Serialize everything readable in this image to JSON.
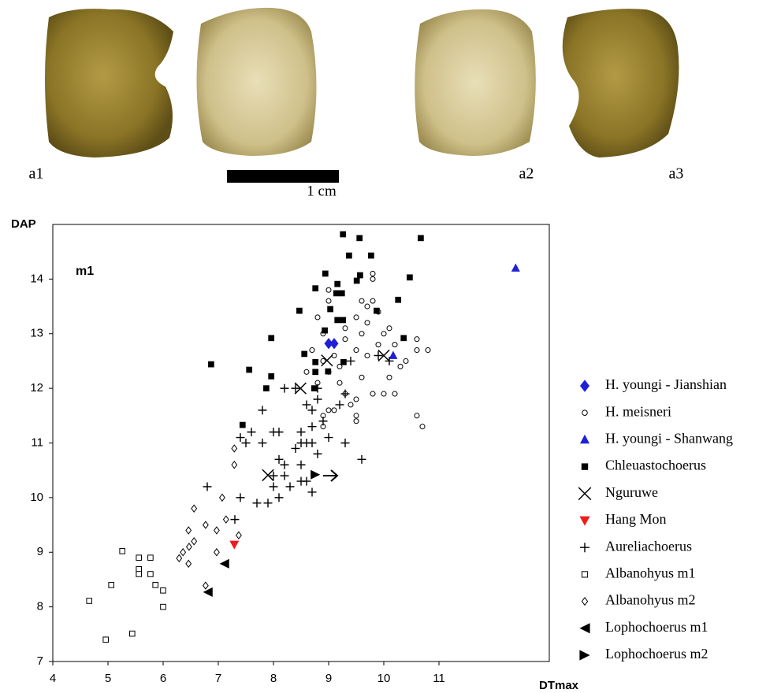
{
  "panel_labels": [
    "a1",
    "a2",
    "a3"
  ],
  "scale_bar": "1 cm",
  "chart_data": {
    "type": "scatter",
    "xlabel": "DTmax",
    "ylabel": "DAP",
    "annotation": "m1",
    "xlim": [
      4,
      13
    ],
    "xticks": [
      4,
      5,
      6,
      7,
      8,
      9,
      10,
      11
    ],
    "ylim": [
      7,
      15
    ],
    "yticks": [
      7,
      8,
      9,
      10,
      11,
      12,
      13,
      14
    ],
    "grid": false,
    "legend": "right",
    "series": [
      {
        "name": "H. youngi - Jianshian",
        "color": "#1f1fd6",
        "marker": "diamond",
        "x": [
          9.0,
          9.1
        ],
        "values": [
          12.82,
          12.82
        ]
      },
      {
        "name": "H. meisneri",
        "color": "#000000",
        "marker": "circle-open",
        "x": [
          9.8,
          9.8,
          9.0,
          9.0,
          9.6,
          9.8,
          9.7,
          9.9,
          8.8,
          9.5,
          9.7,
          10.1,
          9.3,
          9.6,
          10.0,
          8.9,
          10.6,
          9.3,
          9.9,
          10.2,
          10.8,
          9.5,
          10.6,
          8.7,
          9.1,
          9.7,
          10.4,
          8.9,
          10.3,
          9.2,
          8.6,
          9.0,
          9.6,
          8.8,
          9.2,
          10.1,
          9.3,
          9.8,
          9.5,
          10.0,
          10.2,
          9.4,
          9.1,
          9.5,
          8.9,
          9.0,
          10.6,
          10.7,
          8.9,
          9.5
        ],
        "values": [
          14.1,
          14.0,
          13.8,
          13.6,
          13.6,
          13.6,
          13.5,
          13.4,
          13.3,
          13.3,
          13.2,
          13.1,
          13.1,
          13.0,
          13.0,
          13.0,
          12.9,
          12.9,
          12.8,
          12.8,
          12.7,
          12.7,
          12.7,
          12.7,
          12.6,
          12.6,
          12.5,
          12.5,
          12.4,
          12.4,
          12.3,
          12.3,
          12.2,
          12.1,
          12.1,
          12.2,
          11.9,
          11.9,
          11.8,
          11.9,
          11.9,
          11.7,
          11.6,
          11.5,
          11.5,
          11.6,
          11.5,
          11.3,
          11.3,
          11.4
        ]
      },
      {
        "name": "H. youngi - Shanwang",
        "color": "#1f1fd6",
        "marker": "triangle-up",
        "x": [
          12.39,
          10.17
        ],
        "values": [
          14.2,
          12.6
        ]
      },
      {
        "name": "Chleuastochoerus",
        "color": "#000000",
        "marker": "square",
        "x": [
          9.26,
          9.56,
          10.67,
          9.37,
          9.77,
          8.94,
          9.57,
          10.47,
          9.51,
          8.76,
          9.16,
          9.24,
          9.14,
          10.26,
          9.03,
          8.47,
          9.87,
          9.16,
          9.26,
          8.93,
          7.96,
          10.36,
          8.56,
          6.87,
          8.76,
          9.27,
          7.56,
          7.96,
          8.76,
          7.87,
          8.74,
          7.44,
          8.99
        ],
        "values": [
          14.82,
          14.75,
          14.75,
          14.43,
          14.43,
          14.1,
          14.07,
          14.03,
          13.97,
          13.83,
          13.91,
          13.74,
          13.74,
          13.62,
          13.45,
          13.42,
          13.42,
          13.25,
          13.25,
          13.06,
          12.92,
          12.92,
          12.63,
          12.44,
          12.48,
          12.48,
          12.34,
          12.22,
          12.3,
          12.0,
          12.0,
          11.33,
          12.31
        ]
      },
      {
        "name": "Nguruwe",
        "color": "#000000",
        "marker": "x",
        "x": [
          7.9,
          8.49,
          8.97,
          10.0
        ],
        "values": [
          10.41,
          12.0,
          12.51,
          12.6
        ]
      },
      {
        "name": "Hang Mon",
        "color": "#ee1c1c",
        "marker": "triangle-down",
        "x": [
          7.29
        ],
        "values": [
          9.14
        ]
      },
      {
        "name": "Aureliachoerus",
        "color": "#000000",
        "marker": "plus",
        "x": [
          7.8,
          8.0,
          7.8,
          7.6,
          7.5,
          8.1,
          8.5,
          8.5,
          8.6,
          8.7,
          8.4,
          8.8,
          9.3,
          9.6,
          8.1,
          8.2,
          8.5,
          8.0,
          8.2,
          8.5,
          8.6,
          8.0,
          8.3,
          8.7,
          7.7,
          7.9,
          8.1,
          7.4,
          7.3,
          6.8,
          8.4,
          8.6,
          8.8,
          8.7,
          8.7,
          8.9,
          9.2,
          9.3,
          8.2,
          8.8,
          9.0,
          7.4,
          10.1,
          9.9,
          9.4
        ],
        "values": [
          11.6,
          11.2,
          11.0,
          11.2,
          11.0,
          11.2,
          11.2,
          11.0,
          11.0,
          11.0,
          10.9,
          10.8,
          11.0,
          10.7,
          10.7,
          10.6,
          10.6,
          10.4,
          10.4,
          10.3,
          10.3,
          10.2,
          10.2,
          10.1,
          9.9,
          9.9,
          10.0,
          10.0,
          9.6,
          10.2,
          12.0,
          11.7,
          11.8,
          11.6,
          11.3,
          11.4,
          11.7,
          11.9,
          12.0,
          12.0,
          11.1,
          11.1,
          12.5,
          12.6,
          12.5
        ]
      },
      {
        "name": "Albanohyus m1",
        "color": "#000000",
        "marker": "square-open",
        "x": [
          5.26,
          5.56,
          5.56,
          5.56,
          5.77,
          5.77,
          5.86,
          6.0,
          6.0,
          5.06,
          4.66,
          4.96,
          5.44
        ],
        "values": [
          9.02,
          8.9,
          8.69,
          8.6,
          8.9,
          8.6,
          8.4,
          8.3,
          8.0,
          8.4,
          8.11,
          7.4,
          7.51
        ]
      },
      {
        "name": "Albanohyus m2",
        "color": "#000000",
        "marker": "diamond-open",
        "x": [
          7.29,
          7.29,
          7.07,
          6.56,
          6.77,
          7.14,
          6.46,
          6.97,
          7.37,
          6.47,
          6.56,
          6.36,
          6.29,
          6.46,
          6.97,
          6.77
        ],
        "values": [
          10.9,
          10.6,
          10.0,
          9.8,
          9.5,
          9.6,
          9.4,
          9.4,
          9.31,
          9.1,
          9.2,
          9.0,
          8.89,
          8.79,
          9.0,
          8.39
        ]
      },
      {
        "name": "Lophochoerus m1",
        "color": "#000000",
        "marker": "triangle-left",
        "x": [
          7.11,
          6.81
        ],
        "values": [
          8.79,
          8.27
        ]
      },
      {
        "name": "Lophochoerus m2",
        "color": "#000000",
        "marker": "triangle-right",
        "x": [
          8.76
        ],
        "values": [
          10.42
        ]
      }
    ]
  }
}
